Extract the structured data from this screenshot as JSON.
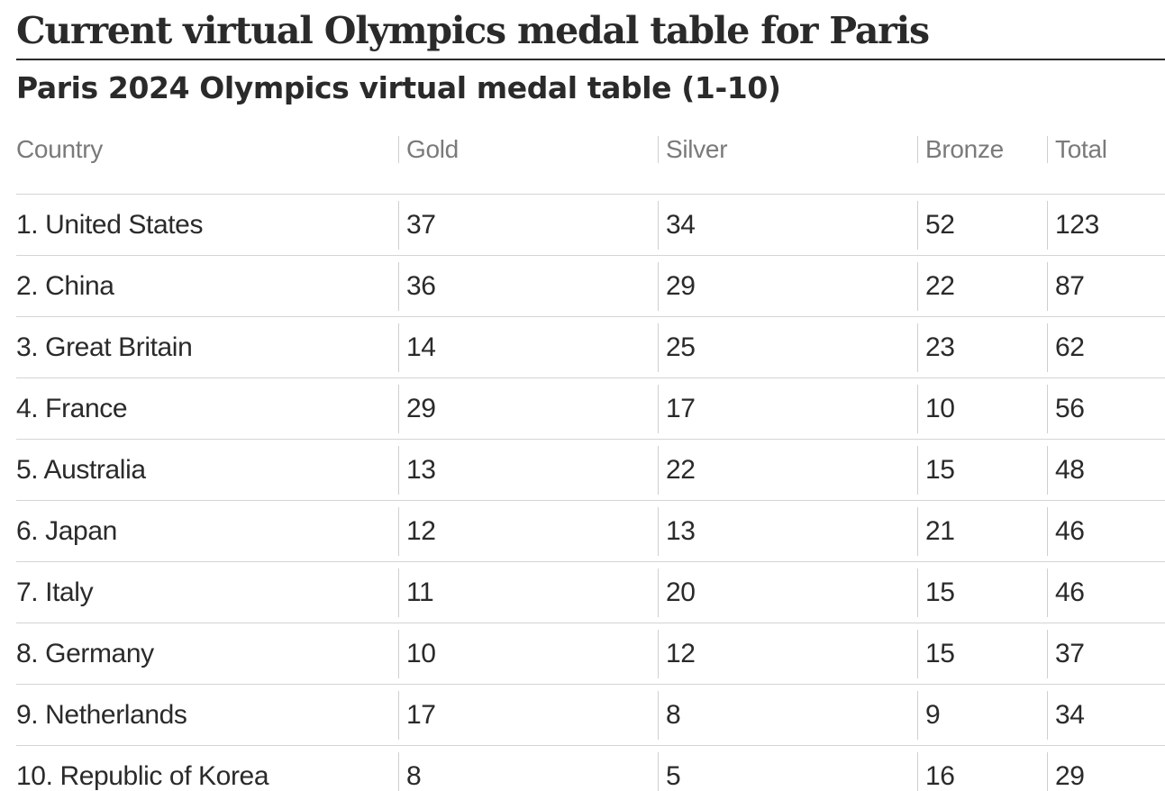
{
  "headline": "Current virtual Olympics medal table for Paris",
  "subtitle": "Paris 2024 Olympics virtual medal table (1-10)",
  "table": {
    "headers": {
      "country": "Country",
      "gold": "Gold",
      "silver": "Silver",
      "bronze": "Bronze",
      "total": "Total"
    },
    "rows": [
      {
        "country": "1. United States",
        "gold": "37",
        "silver": "34",
        "bronze": "52",
        "total": "123"
      },
      {
        "country": "2. China",
        "gold": "36",
        "silver": "29",
        "bronze": "22",
        "total": "87"
      },
      {
        "country": "3. Great Britain",
        "gold": "14",
        "silver": "25",
        "bronze": "23",
        "total": "62"
      },
      {
        "country": "4. France",
        "gold": "29",
        "silver": "17",
        "bronze": "10",
        "total": "56"
      },
      {
        "country": "5. Australia",
        "gold": "13",
        "silver": "22",
        "bronze": "15",
        "total": "48"
      },
      {
        "country": "6. Japan",
        "gold": "12",
        "silver": "13",
        "bronze": "21",
        "total": "46"
      },
      {
        "country": "7. Italy",
        "gold": "11",
        "silver": "20",
        "bronze": "15",
        "total": "46"
      },
      {
        "country": "8. Germany",
        "gold": "10",
        "silver": "12",
        "bronze": "15",
        "total": "37"
      },
      {
        "country": "9. Netherlands",
        "gold": "17",
        "silver": "8",
        "bronze": "9",
        "total": "34"
      },
      {
        "country": "10. Republic of Korea",
        "gold": "8",
        "silver": "5",
        "bronze": "16",
        "total": "29"
      }
    ]
  },
  "colors": {
    "text": "#2a2a2a",
    "header_text": "#7a7a7a",
    "rule": "#d4d4d4"
  }
}
